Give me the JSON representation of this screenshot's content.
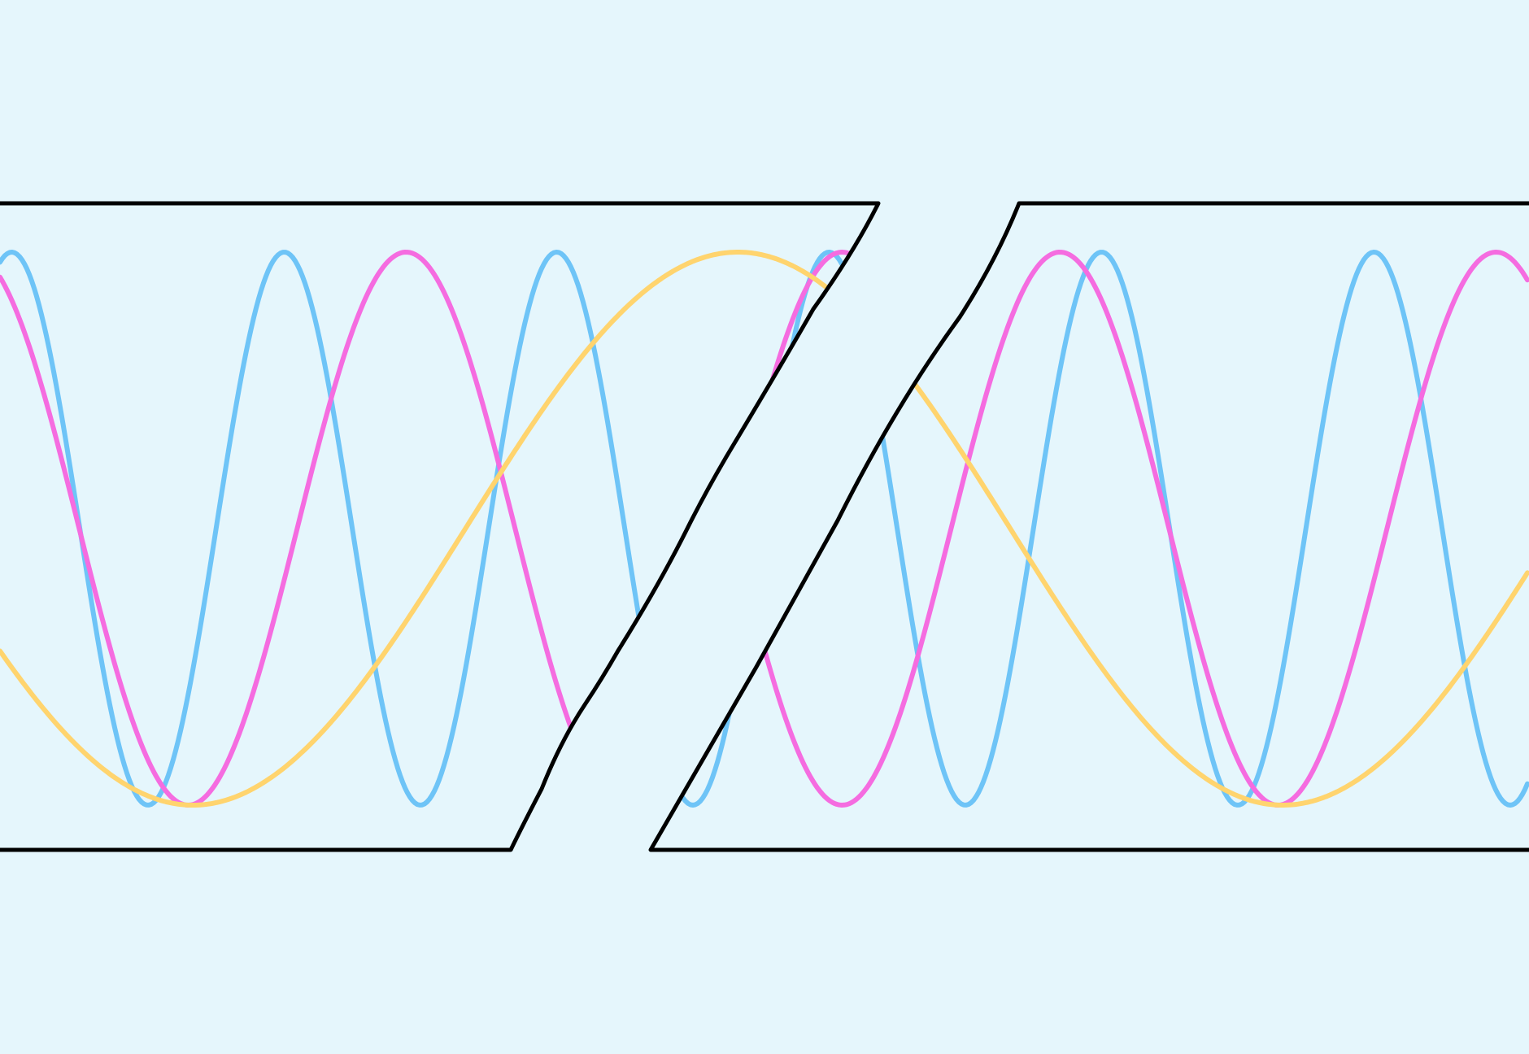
{
  "illustration": {
    "background": "#e5f6fc",
    "frame_color": "#000000",
    "waves": [
      {
        "name": "wave-blue-icon",
        "color": "#6ec4f7",
        "cycles_per_panel": 4
      },
      {
        "name": "wave-pink-icon",
        "color": "#f56ce0",
        "cycles_per_panel": 2.5
      },
      {
        "name": "wave-yellow-icon",
        "color": "#ffd46e",
        "cycles_per_panel": 1
      }
    ]
  }
}
